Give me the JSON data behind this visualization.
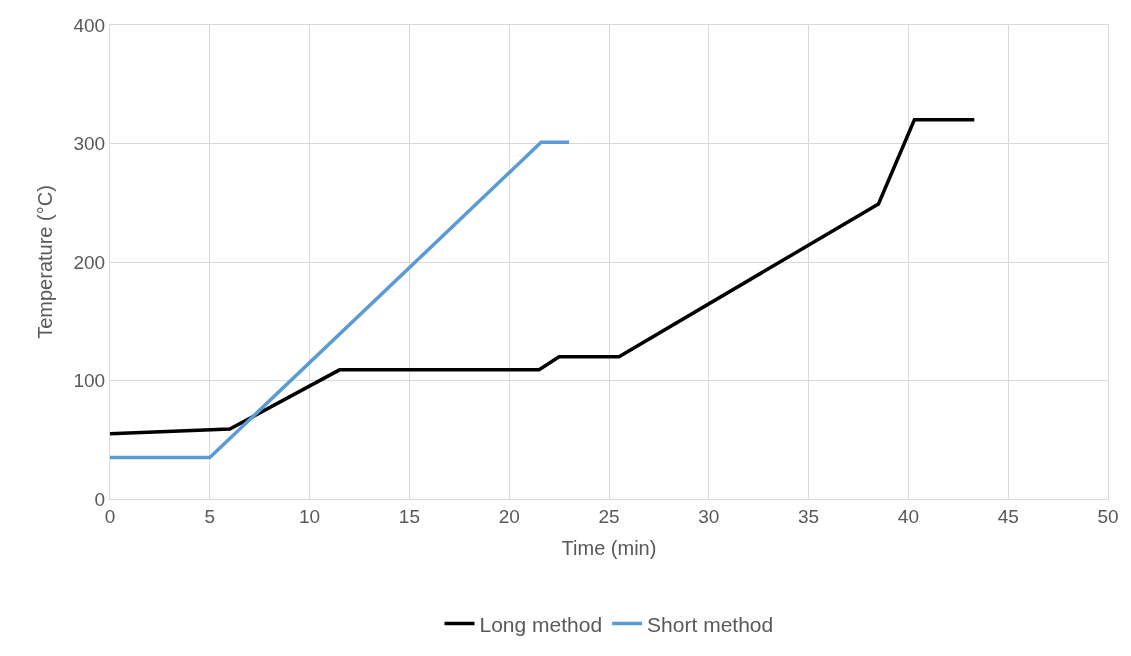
{
  "chart_data": {
    "type": "line",
    "xlabel": "Time (min)",
    "ylabel": "Temperature (°C)",
    "series": [
      {
        "name": "Long method",
        "color": "#000000",
        "x": [
          0,
          6,
          11.5,
          21.5,
          22.5,
          25.5,
          38.5,
          40.3,
          43.3
        ],
        "values": [
          55,
          59,
          109,
          109,
          120,
          120,
          249,
          320,
          320
        ]
      },
      {
        "name": "Short method",
        "color": "#5b9bd5",
        "x": [
          0,
          5,
          21.6,
          23
        ],
        "values": [
          35,
          35,
          301,
          301
        ]
      }
    ],
    "xlim": [
      0,
      50
    ],
    "xticks": [
      0,
      5,
      10,
      15,
      20,
      25,
      30,
      35,
      40,
      45,
      50
    ],
    "ylim": [
      0,
      400
    ],
    "yticks": [
      0,
      100,
      200,
      300,
      400
    ],
    "grid": true,
    "legend": "bottom",
    "marker": "none",
    "line_style": "solid"
  }
}
